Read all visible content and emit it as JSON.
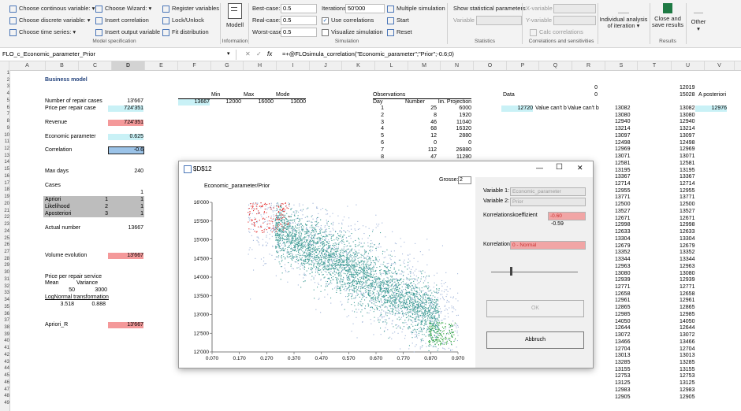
{
  "ribbon": {
    "continuous": "Choose continous variable:",
    "discrete": "Choose discrete variable:",
    "timeseries": "Choose time series:",
    "wizard": "Choose Wizard:",
    "insert_corr": "Insert correlation",
    "insert_output": "Insert output variable",
    "register": "Register variables",
    "lock": "Lock/Unlock",
    "fit": "Fit distribution",
    "modell": "Modell",
    "best_label": "Best-case:",
    "best_value": "0.5",
    "real_label": "Real-case:",
    "real_value": "0.5",
    "worst_label": "Worst-case:",
    "worst_value": "0.5",
    "iter_label": "Iterations:",
    "iter_value": "50'000",
    "use_corr": "Use correlations",
    "visualize": "Visualize simulation",
    "multiple": "Multiple simulation",
    "start": "Start",
    "reset": "Reset",
    "show_stats": "Show statistical parameters",
    "variable": "Variable",
    "xvar": "X-variable",
    "yvar": "Y-variable",
    "calc_corr": "Calc correlations",
    "individual": "Individual analysis of iteration",
    "close_save": "Close and save results",
    "other": "Other",
    "groups": {
      "model_spec": "Model specification",
      "information": "Information",
      "simulation": "Simulation",
      "statistics": "Statistics",
      "corr_sens": "Correlations and sensitivities",
      "results": "Results"
    }
  },
  "formula": {
    "namebox": "FLO_c_Economic_parameter_Prior",
    "fx": "fx",
    "content": "=+@FLOsimula_correlation(\"Economic_parameter\";\"Prior\";-0.6;0)"
  },
  "columns": [
    "A",
    "B",
    "C",
    "D",
    "E",
    "F",
    "G",
    "H",
    "I",
    "J",
    "K",
    "L",
    "M",
    "N",
    "O",
    "P",
    "Q",
    "R",
    "S",
    "T",
    "U",
    "V"
  ],
  "rows": [
    "1",
    "2",
    "3",
    "4",
    "5",
    "6",
    "7",
    "8",
    "9",
    "10",
    "11",
    "12",
    "13",
    "14",
    "15",
    "16",
    "17",
    "18",
    "19",
    "20",
    "21",
    "22",
    "23",
    "24",
    "25",
    "26",
    "27",
    "28",
    "29",
    "30",
    "31",
    "32",
    "33",
    "34",
    "35",
    "36",
    "37",
    "38",
    "39",
    "40",
    "41",
    "42",
    "43",
    "44",
    "45",
    "46",
    "47",
    "48",
    "49"
  ],
  "sheet": {
    "business_model": "Business model",
    "repair_cases_label": "Number of repair cases",
    "repair_cases_value": "13'667",
    "price_label": "Price per repair case",
    "price_value": "724'351",
    "revenue_label": "Revenue",
    "revenue_value": "724'351",
    "econ_label": "Economic parameter",
    "econ_value": "0.625",
    "corr_label": "Correlation",
    "corr_value": "-0.6",
    "maxdays_label": "Max days",
    "maxdays_value": "240",
    "cases_label": "Cases",
    "cases_one": "1",
    "apriori": "Apriori",
    "apriori_c": "1",
    "apriori_d": "1",
    "likelihood": "Likelihood",
    "likelihood_c": "2",
    "likelihood_d": "1",
    "aposteriori": "Aposteriori",
    "aposteriori_c": "3",
    "aposteriori_d": "1",
    "actual_label": "Actual number",
    "actual_value": "13667",
    "volume_label": "Volume evolution",
    "volume_value": "13'667",
    "price_service": "Price per repair service",
    "mean_label": "Mean",
    "variance_label": "Variance",
    "mean_value": "50",
    "variance_value": "3000",
    "lognormal": "LogNormal transformation",
    "ln1": "3.518",
    "ln2": "0.888",
    "apriori_r": "Apriori_R",
    "apriori_r_value": "13'667",
    "min_label": "Min",
    "max_label": "Max",
    "mode_label": "Mode",
    "f6": "13667",
    "min_value": "12000",
    "max_value": "16000",
    "mode_value": "13000",
    "observations": "Observations",
    "day": "Day",
    "number": "Number",
    "linproj": "lin. Projection",
    "obs": [
      [
        "1",
        "25",
        "6000"
      ],
      [
        "2",
        "8",
        "1920"
      ],
      [
        "3",
        "46",
        "11040"
      ],
      [
        "4",
        "68",
        "16320"
      ],
      [
        "5",
        "12",
        "2880"
      ],
      [
        "6",
        "0",
        "0"
      ],
      [
        "7",
        "112",
        "26880"
      ],
      [
        "8",
        "47",
        "11280"
      ]
    ],
    "r_zero1": "0",
    "r_zero2": "0",
    "data_label": "Data",
    "p6": "12720",
    "q6": "Value can't b",
    "r6": "Value can't b",
    "u_top1": "12019",
    "u_top2": "15028",
    "a_posteriori": "A posteriori",
    "v6": "12976",
    "col_s": [
      "13082",
      "13080",
      "12940",
      "13214",
      "13097",
      "12498",
      "12969",
      "13071",
      "12581",
      "13195",
      "13367",
      "12714",
      "12955",
      "13771",
      "12500",
      "13527",
      "12671",
      "12998",
      "12633",
      "13304",
      "12679",
      "13352",
      "13344",
      "12963",
      "13080",
      "12939",
      "12771",
      "12658",
      "12961",
      "12865",
      "12985",
      "14050",
      "12644",
      "13072",
      "13466",
      "12704",
      "13013",
      "13285",
      "13155",
      "12753",
      "13125",
      "12983",
      "12905"
    ],
    "col_u": [
      "13082",
      "13080",
      "12940",
      "13214",
      "13097",
      "12498",
      "12969",
      "13071",
      "12581",
      "13195",
      "13367",
      "12714",
      "12955",
      "13771",
      "12500",
      "13527",
      "12671",
      "12998",
      "12633",
      "13304",
      "12679",
      "13352",
      "13344",
      "12963",
      "13080",
      "12939",
      "12771",
      "12658",
      "12961",
      "12865",
      "12985",
      "14050",
      "12644",
      "13072",
      "13466",
      "12704",
      "13013",
      "13285",
      "13155",
      "12753",
      "13125",
      "12983",
      "12905"
    ]
  },
  "dialog": {
    "title": "$D$12",
    "plot_title": "Economic_parameter/Prior",
    "grosse_label": "Grosse:",
    "grosse_value": "2",
    "var1_label": "Variable 1:",
    "var1_value": "Economic_parameter",
    "var2_label": "Variable 2:",
    "var2_value": "Prior",
    "koeff_label": "Korrelationskoeffizient",
    "koeff_value": "-0.60",
    "koeff_result": "-0.59",
    "typ_label": "Korrelationstyp:",
    "typ_value": "0 - Normal",
    "ok": "OK",
    "cancel": "Abbruch",
    "minimize": "—",
    "maximize": "☐",
    "close": "✕"
  },
  "chart_data": {
    "type": "scatter",
    "title": "Economic_parameter/Prior",
    "xlim": [
      0.07,
      0.97
    ],
    "ylim": [
      12000,
      16000
    ],
    "x_ticks": [
      "0.070",
      "0.170",
      "0.270",
      "0.370",
      "0.470",
      "0.570",
      "0.670",
      "0.770",
      "0.870",
      "0.970"
    ],
    "y_ticks": [
      "12'000",
      "12'500",
      "13'000",
      "13'500",
      "14'000",
      "14'500",
      "15'000",
      "15'500",
      "16'000"
    ],
    "series": [
      {
        "color": "#9db2d8",
        "description": "scattered light blue points",
        "count": 1400
      },
      {
        "color": "#3f9c95",
        "description": "dense teal band with negative slope",
        "count": 3200
      },
      {
        "color": "#e12020",
        "description": "red cluster upper left",
        "x_range": [
          0.2,
          0.35
        ],
        "y_range": [
          15200,
          16000
        ],
        "count": 140
      },
      {
        "color": "#1f9e2e",
        "description": "green cluster lower right",
        "x_range": [
          0.86,
          0.96
        ],
        "y_range": [
          12200,
          12800
        ],
        "count": 140
      }
    ],
    "colors": {
      "teal": "#3f9c95",
      "light": "#9db2d8",
      "red": "#e12020",
      "green": "#1f9e2e"
    }
  }
}
